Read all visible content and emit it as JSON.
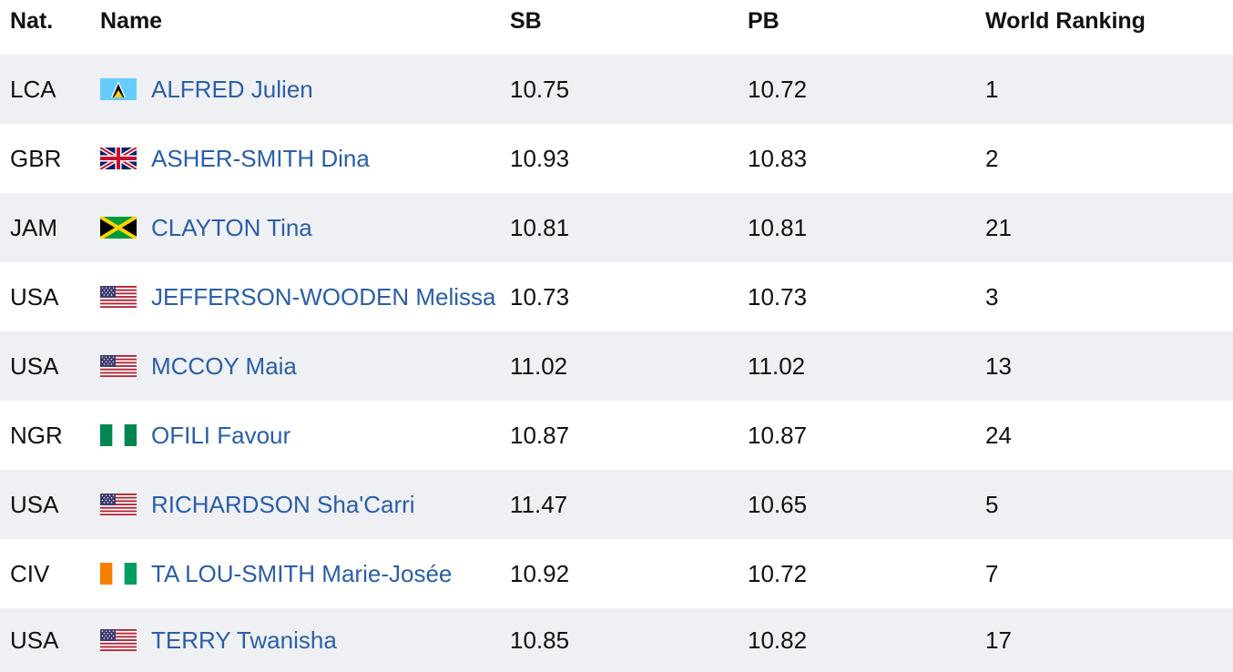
{
  "header": {
    "nat": "Nat.",
    "name": "Name",
    "sb": "SB",
    "pb": "PB",
    "rank": "World Ranking"
  },
  "rows": [
    {
      "nat": "LCA",
      "flag": "saint-lucia-flag-icon",
      "name": "ALFRED Julien",
      "sb": "10.75",
      "pb": "10.72",
      "rank": "1"
    },
    {
      "nat": "GBR",
      "flag": "united-kingdom-flag-icon",
      "name": "ASHER-SMITH Dina",
      "sb": "10.93",
      "pb": "10.83",
      "rank": "2"
    },
    {
      "nat": "JAM",
      "flag": "jamaica-flag-icon",
      "name": "CLAYTON Tina",
      "sb": "10.81",
      "pb": "10.81",
      "rank": "21"
    },
    {
      "nat": "USA",
      "flag": "usa-flag-icon",
      "name": "JEFFERSON-WOODEN Melissa",
      "sb": "10.73",
      "pb": "10.73",
      "rank": "3"
    },
    {
      "nat": "USA",
      "flag": "usa-flag-icon",
      "name": "MCCOY Maia",
      "sb": "11.02",
      "pb": "11.02",
      "rank": "13"
    },
    {
      "nat": "NGR",
      "flag": "nigeria-flag-icon",
      "name": "OFILI Favour",
      "sb": "10.87",
      "pb": "10.87",
      "rank": "24"
    },
    {
      "nat": "USA",
      "flag": "usa-flag-icon",
      "name": "RICHARDSON Sha'Carri",
      "sb": "11.47",
      "pb": "10.65",
      "rank": "5"
    },
    {
      "nat": "CIV",
      "flag": "ivory-coast-flag-icon",
      "name": "TA LOU-SMITH Marie-Josée",
      "sb": "10.92",
      "pb": "10.72",
      "rank": "7"
    },
    {
      "nat": "USA",
      "flag": "usa-flag-icon",
      "name": "TERRY Twanisha",
      "sb": "10.85",
      "pb": "10.82",
      "rank": "17"
    }
  ],
  "colors": {
    "link": "#2a5ea8",
    "row_shade": "#eff0f4"
  }
}
